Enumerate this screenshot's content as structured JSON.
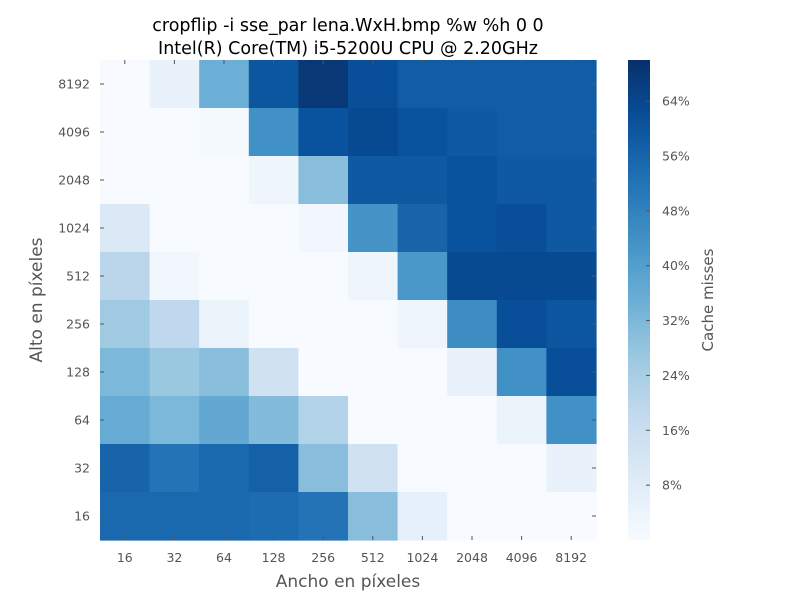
{
  "chart_data": {
    "type": "heatmap",
    "title": "cropflip -i sse_par lena.WxH.bmp %w %h 0 0",
    "subtitle": "Intel(R) Core(TM) i5-5200U CPU @ 2.20GHz",
    "xlabel": "Ancho en píxeles",
    "ylabel": "Alto en píxeles",
    "colorbar_label": "Cache misses",
    "colormap": "Blues",
    "x": [
      "16",
      "32",
      "64",
      "128",
      "256",
      "512",
      "1024",
      "2048",
      "4096",
      "8192"
    ],
    "y": [
      "8192",
      "4096",
      "2048",
      "1024",
      "512",
      "256",
      "128",
      "64",
      "32",
      "16"
    ],
    "values": [
      [
        0,
        5,
        35,
        60,
        68,
        62,
        58,
        58,
        58,
        58
      ],
      [
        0,
        0,
        1,
        44,
        61,
        63,
        61,
        59,
        58,
        58
      ],
      [
        0,
        0,
        0,
        3,
        30,
        59,
        59,
        61,
        59,
        59
      ],
      [
        10,
        0,
        0,
        0,
        2,
        43,
        56,
        61,
        62,
        59
      ],
      [
        20,
        2,
        0,
        0,
        0,
        3,
        42,
        63,
        63,
        63
      ],
      [
        26,
        19,
        4,
        0,
        0,
        0,
        3,
        45,
        62,
        60
      ],
      [
        32,
        27,
        30,
        14,
        0,
        0,
        0,
        5,
        44,
        62
      ],
      [
        36,
        32,
        37,
        31,
        22,
        0,
        0,
        0,
        4,
        44
      ],
      [
        56,
        52,
        55,
        57,
        30,
        14,
        0,
        0,
        0,
        5
      ],
      [
        55,
        55,
        55,
        54,
        52,
        30,
        6,
        0,
        0,
        0
      ]
    ],
    "colorbar_ticks": [
      {
        "value": 8,
        "label": "8%"
      },
      {
        "value": 16,
        "label": "16%"
      },
      {
        "value": 24,
        "label": "24%"
      },
      {
        "value": 32,
        "label": "32%"
      },
      {
        "value": 40,
        "label": "40%"
      },
      {
        "value": 48,
        "label": "48%"
      },
      {
        "value": 56,
        "label": "56%"
      },
      {
        "value": 64,
        "label": "64%"
      }
    ],
    "vmin": 0,
    "vmax": 70
  }
}
